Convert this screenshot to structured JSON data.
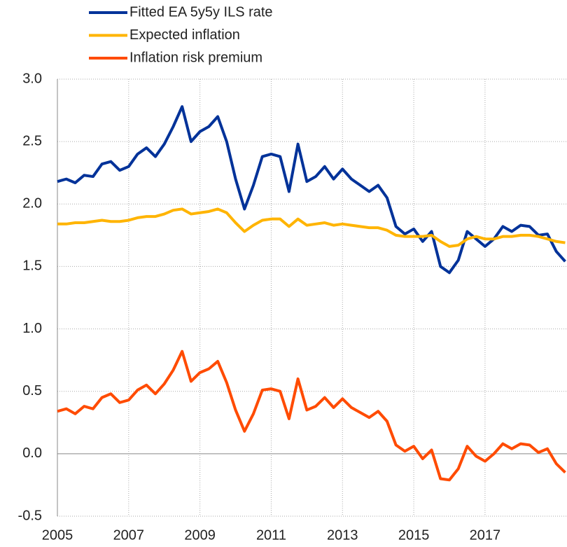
{
  "chart_data": {
    "type": "line",
    "x": [
      2005,
      2005.25,
      2005.5,
      2005.75,
      2006,
      2006.25,
      2006.5,
      2006.75,
      2007,
      2007.25,
      2007.5,
      2007.75,
      2008,
      2008.25,
      2008.5,
      2008.75,
      2009,
      2009.25,
      2009.5,
      2009.75,
      2010,
      2010.25,
      2010.5,
      2010.75,
      2011,
      2011.25,
      2011.5,
      2011.75,
      2012,
      2012.25,
      2012.5,
      2012.75,
      2013,
      2013.25,
      2013.5,
      2013.75,
      2014,
      2014.25,
      2014.5,
      2014.75,
      2015,
      2015.25,
      2015.5,
      2015.75,
      2016,
      2016.25,
      2016.5,
      2016.75,
      2017,
      2017.25,
      2017.5,
      2017.75,
      2018,
      2018.25,
      2018.5,
      2018.75,
      2019,
      2019.25
    ],
    "series": [
      {
        "name": "Fitted EA 5y5y ILS rate",
        "color": "#003299",
        "values": [
          2.18,
          2.2,
          2.17,
          2.23,
          2.22,
          2.32,
          2.34,
          2.27,
          2.3,
          2.4,
          2.45,
          2.38,
          2.48,
          2.62,
          2.78,
          2.5,
          2.58,
          2.62,
          2.7,
          2.5,
          2.2,
          1.96,
          2.15,
          2.38,
          2.4,
          2.38,
          2.1,
          2.48,
          2.18,
          2.22,
          2.3,
          2.2,
          2.28,
          2.2,
          2.15,
          2.1,
          2.15,
          2.05,
          1.82,
          1.76,
          1.8,
          1.7,
          1.78,
          1.5,
          1.45,
          1.55,
          1.78,
          1.72,
          1.66,
          1.72,
          1.82,
          1.78,
          1.83,
          1.82,
          1.75,
          1.76,
          1.62,
          1.54
        ]
      },
      {
        "name": "Expected inflation",
        "color": "#ffb400",
        "values": [
          1.84,
          1.84,
          1.85,
          1.85,
          1.86,
          1.87,
          1.86,
          1.86,
          1.87,
          1.89,
          1.9,
          1.9,
          1.92,
          1.95,
          1.96,
          1.92,
          1.93,
          1.94,
          1.96,
          1.93,
          1.85,
          1.78,
          1.83,
          1.87,
          1.88,
          1.88,
          1.82,
          1.88,
          1.83,
          1.84,
          1.85,
          1.83,
          1.84,
          1.83,
          1.82,
          1.81,
          1.81,
          1.79,
          1.75,
          1.74,
          1.74,
          1.74,
          1.75,
          1.7,
          1.66,
          1.67,
          1.72,
          1.74,
          1.72,
          1.72,
          1.74,
          1.74,
          1.75,
          1.75,
          1.74,
          1.72,
          1.7,
          1.69
        ]
      },
      {
        "name": "Inflation risk premium",
        "color": "#ff4b00",
        "values": [
          0.34,
          0.36,
          0.32,
          0.38,
          0.36,
          0.45,
          0.48,
          0.41,
          0.43,
          0.51,
          0.55,
          0.48,
          0.56,
          0.67,
          0.82,
          0.58,
          0.65,
          0.68,
          0.74,
          0.57,
          0.35,
          0.18,
          0.32,
          0.51,
          0.52,
          0.5,
          0.28,
          0.6,
          0.35,
          0.38,
          0.45,
          0.37,
          0.44,
          0.37,
          0.33,
          0.29,
          0.34,
          0.26,
          0.07,
          0.02,
          0.06,
          -0.04,
          0.03,
          -0.2,
          -0.21,
          -0.12,
          0.06,
          -0.02,
          -0.06,
          0.0,
          0.08,
          0.04,
          0.08,
          0.07,
          0.01,
          0.04,
          -0.08,
          -0.15
        ]
      }
    ],
    "xlim": [
      2005,
      2019.3
    ],
    "xticks": [
      2005,
      2007,
      2009,
      2011,
      2013,
      2015,
      2017
    ],
    "ylim": [
      -0.5,
      3
    ],
    "yticks": [
      -0.5,
      {
        "value": 0,
        "label": "0.0"
      },
      0.5,
      {
        "value": 1,
        "label": "1.0"
      },
      1.5,
      {
        "value": 2,
        "label": "2.0"
      },
      2.5,
      {
        "value": 3,
        "label": "3.0"
      }
    ],
    "grid": true
  }
}
